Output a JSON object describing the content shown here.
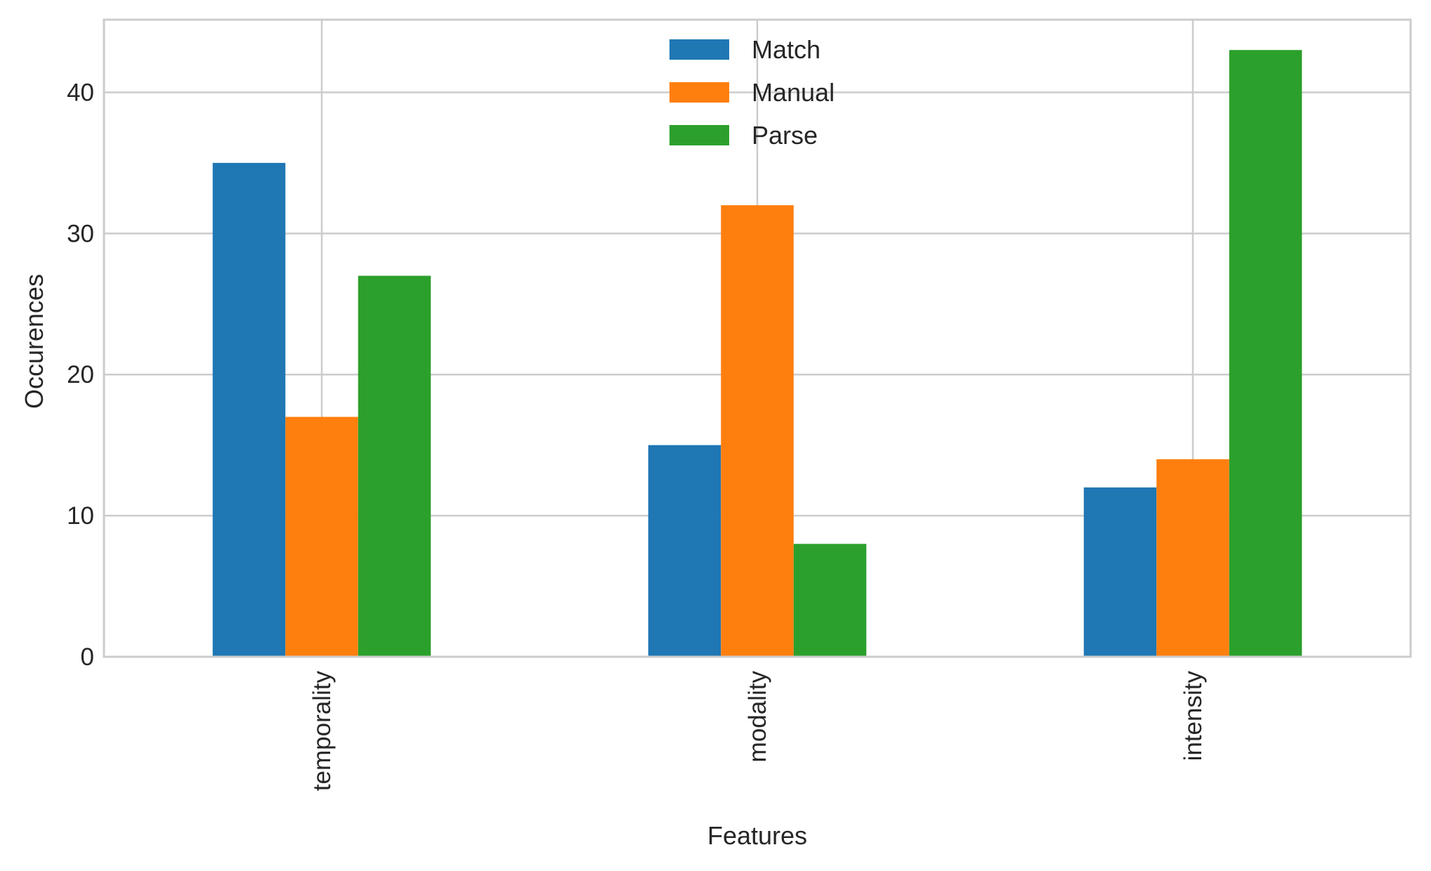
{
  "chart_data": {
    "type": "bar",
    "categories": [
      "temporality",
      "modality",
      "intensity"
    ],
    "series": [
      {
        "name": "Match",
        "values": [
          35,
          15,
          12
        ],
        "color": "#1f77b4"
      },
      {
        "name": "Manual",
        "values": [
          17,
          32,
          14
        ],
        "color": "#ff7f0e"
      },
      {
        "name": "Parse",
        "values": [
          27,
          8,
          43
        ],
        "color": "#2ca02c"
      }
    ],
    "xlabel": "Features",
    "ylabel": "Occurences",
    "ylim": [
      0,
      45.15
    ],
    "yticks": [
      0,
      10,
      20,
      30,
      40
    ],
    "grid": true,
    "legend_position": "top-center"
  }
}
